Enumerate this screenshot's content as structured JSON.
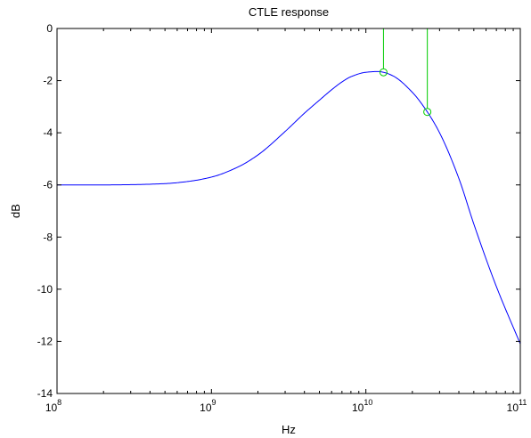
{
  "chart_data": {
    "type": "line",
    "title": "CTLE response",
    "xlabel": "Hz",
    "ylabel": "dB",
    "x_scale": "log",
    "xlim": [
      100000000,
      100000000000
    ],
    "ylim": [
      -14,
      0
    ],
    "grid": false,
    "x_ticks": [
      {
        "value": 100000000,
        "base": "10",
        "exp": "8"
      },
      {
        "value": 1000000000,
        "base": "10",
        "exp": "9"
      },
      {
        "value": 10000000000,
        "base": "10",
        "exp": "10"
      },
      {
        "value": 100000000000,
        "base": "10",
        "exp": "11"
      }
    ],
    "y_ticks": [
      0,
      -2,
      -4,
      -6,
      -8,
      -10,
      -12,
      -14
    ],
    "series": [
      {
        "color": "#0000ff",
        "x": [
          100000000,
          200000000,
          300000000,
          500000000,
          700000000,
          1000000000,
          1500000000,
          2000000000,
          3000000000,
          4000000000,
          5000000000,
          6000000000,
          7000000000,
          8000000000,
          10000000000,
          12000000000,
          13000000000,
          15000000000,
          20000000000,
          25000000000,
          30000000000,
          40000000000,
          50000000000,
          70000000000,
          100000000000
        ],
        "y": [
          -6.0,
          -6.0,
          -5.99,
          -5.95,
          -5.87,
          -5.7,
          -5.3,
          -4.85,
          -3.95,
          -3.25,
          -2.75,
          -2.35,
          -2.05,
          -1.85,
          -1.68,
          -1.65,
          -1.68,
          -1.82,
          -2.45,
          -3.2,
          -4.0,
          -5.75,
          -7.5,
          -9.9,
          -12.1
        ]
      }
    ],
    "markers": [
      {
        "color": "#00cc00",
        "shape": "circle",
        "x": 13000000000,
        "y": -1.68
      },
      {
        "color": "#00cc00",
        "shape": "circle",
        "x": 25000000000,
        "y": -3.2
      }
    ]
  }
}
